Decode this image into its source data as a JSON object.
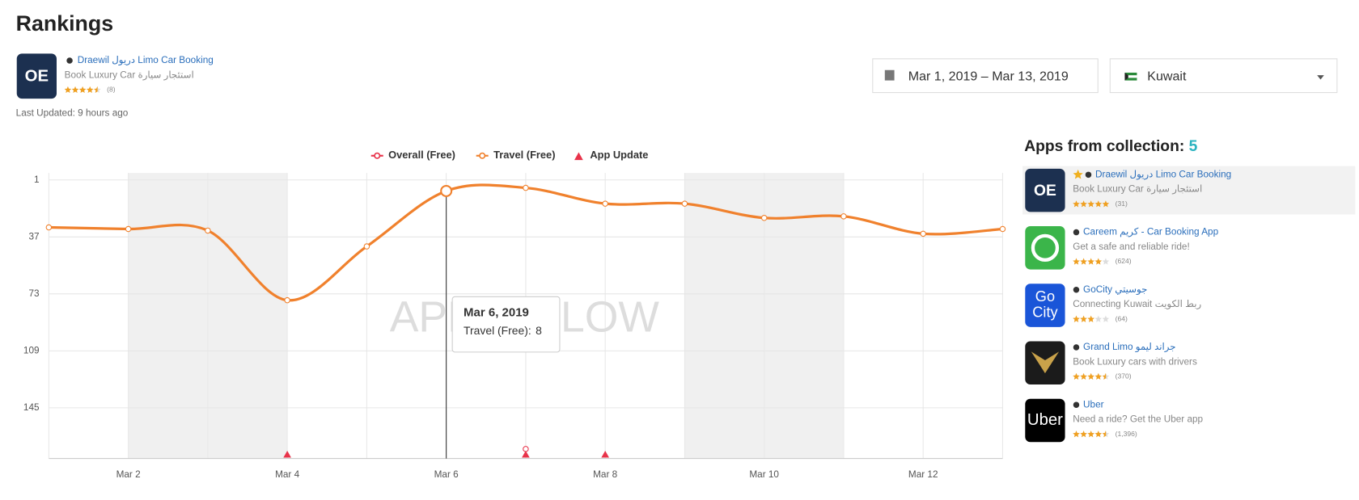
{
  "header": {
    "title": "Rankings"
  },
  "app": {
    "name": "Draewil دريول Limo Car Booking",
    "subtitle": "Book Luxury Car استئجار سيارة",
    "rating": 4.5,
    "rating_count": "(8)",
    "last_updated": "Last Updated: 9 hours ago"
  },
  "filters": {
    "date_range": "Mar 1, 2019 – Mar 13, 2019",
    "country": "Kuwait"
  },
  "collection": {
    "title": "Apps from collection:",
    "count": 5,
    "apps": [
      {
        "name": "Draewil دريول Limo Car Booking",
        "description": "Book Luxury Car استئجار سيارة",
        "rating": 5,
        "rating_count": "(31)"
      },
      {
        "name": "Careem كريم - Car Booking App",
        "description": "Get a safe and reliable ride!",
        "rating": 4,
        "rating_count": "(624)"
      },
      {
        "name": "GoCity جوسيتي",
        "description": "Connecting Kuwait ربط الكويت",
        "rating": 3,
        "rating_count": "(64)",
        "icon_text": [
          "Go",
          "City"
        ]
      },
      {
        "name": "Grand Limo جراند ليمو",
        "description": "Book Luxury cars with drivers",
        "rating": 4.5,
        "rating_count": "(370)"
      },
      {
        "name": "Uber",
        "description": "Need a ride? Get the Uber app",
        "rating": 4.5,
        "rating_count": "(1,396)",
        "icon_text": [
          "Uber"
        ]
      }
    ]
  },
  "chart_data": {
    "type": "line",
    "categories": [
      null,
      "Mar 2",
      null,
      "Mar 4",
      null,
      "Mar 6",
      null,
      "Mar 8",
      null,
      "Mar 10",
      null,
      "Mar 12",
      null
    ],
    "series": [
      {
        "name": "Overall (Free)",
        "color": "#e8334a",
        "values": [
          null,
          null,
          null,
          null,
          null,
          null,
          171,
          null,
          null,
          null,
          null,
          null,
          null
        ]
      },
      {
        "name": "Travel (Free)",
        "color": "#f0812d",
        "values": [
          31,
          32,
          33,
          77,
          43,
          8,
          6,
          16,
          16,
          25,
          24,
          35,
          32
        ]
      }
    ],
    "ylim": [
      1,
      177
    ],
    "y_inverted": true,
    "yticks": [
      1,
      37,
      73,
      109,
      145
    ],
    "grid": true,
    "app_updates": {
      "name": "App Update",
      "color": "#e8334a",
      "x": [
        3,
        6,
        7
      ]
    },
    "shaded_ranges": [
      [
        1,
        3
      ],
      [
        8,
        10
      ]
    ],
    "tooltip": {
      "title": "Mar 6, 2019",
      "label": "Travel (Free):",
      "index": 5
    },
    "watermark": "APPFOLLOW"
  }
}
